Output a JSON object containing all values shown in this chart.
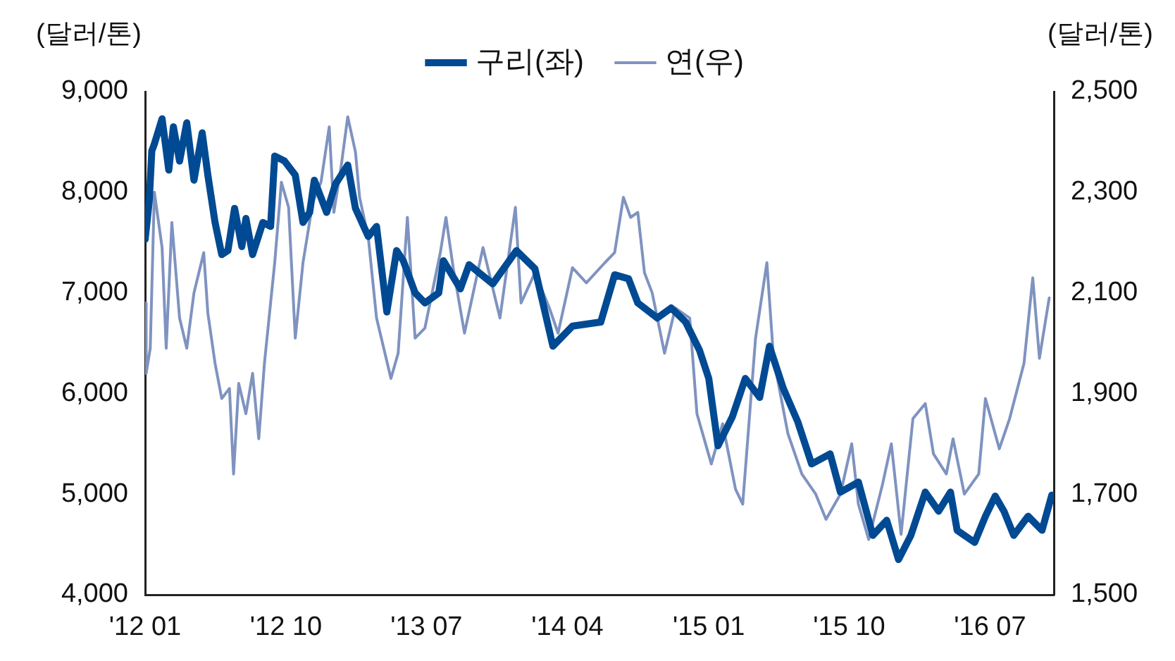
{
  "chart_data": {
    "type": "line",
    "ylabel": "(달러/톤)",
    "y2label": "(달러/톤)",
    "xlim": [
      "2012-01-01",
      "2016-11-02"
    ],
    "xticks": [
      {
        "value": "2012-01-01",
        "label": "'12 01"
      },
      {
        "value": "2012-10-01",
        "label": "'12 10"
      },
      {
        "value": "2013-07-01",
        "label": "'13 07"
      },
      {
        "value": "2014-04-01",
        "label": "'14 04"
      },
      {
        "value": "2015-01-01",
        "label": "'15 01"
      },
      {
        "value": "2015-10-01",
        "label": "'15 10"
      },
      {
        "value": "2016-07-01",
        "label": "'16 07"
      }
    ],
    "ylim": [
      4000,
      9000
    ],
    "yticks": [
      {
        "value": 4000,
        "label": "4,000"
      },
      {
        "value": 5000,
        "label": "5,000"
      },
      {
        "value": 6000,
        "label": "6,000"
      },
      {
        "value": 7000,
        "label": "7,000"
      },
      {
        "value": 8000,
        "label": "8,000"
      },
      {
        "value": 9000,
        "label": "9,000"
      }
    ],
    "y2lim": [
      1500,
      2500
    ],
    "y2ticks": [
      {
        "value": 1500,
        "label": "1,500"
      },
      {
        "value": 1700,
        "label": "1,700"
      },
      {
        "value": 1900,
        "label": "1,900"
      },
      {
        "value": 2100,
        "label": "2,100"
      },
      {
        "value": 2300,
        "label": "2,300"
      },
      {
        "value": 2500,
        "label": "2,500"
      }
    ],
    "grid": false,
    "legend": "top",
    "marker": "none",
    "line_style": "solid",
    "series": [
      {
        "name": "구리(좌)",
        "color": "#004a93",
        "x": [
          "2012-01-01",
          "2012-01-09",
          "2012-01-14",
          "2012-01-19",
          "2012-02-03",
          "2012-02-16",
          "2012-02-25",
          "2012-03-08",
          "2012-03-22",
          "2012-04-05",
          "2012-04-21",
          "2012-05-02",
          "2012-05-16",
          "2012-05-29",
          "2012-06-10",
          "2012-06-23",
          "2012-07-07",
          "2012-07-15",
          "2012-07-28",
          "2012-08-17",
          "2012-09-01",
          "2012-09-09",
          "2012-09-28",
          "2012-10-19",
          "2012-11-03",
          "2012-11-16",
          "2012-11-25",
          "2012-12-19",
          "2013-01-05",
          "2013-01-29",
          "2013-02-13",
          "2013-03-10",
          "2013-03-26",
          "2013-04-15",
          "2013-05-04",
          "2013-05-17",
          "2013-06-09",
          "2013-06-28",
          "2013-07-25",
          "2013-08-03",
          "2013-09-05",
          "2013-09-22",
          "2013-11-07",
          "2013-12-23",
          "2014-01-28",
          "2014-03-04",
          "2014-04-11",
          "2014-06-05",
          "2014-07-02",
          "2014-07-29",
          "2014-08-16",
          "2014-09-23",
          "2014-10-20",
          "2014-11-17",
          "2014-12-14",
          "2015-01-01",
          "2015-01-19",
          "2015-02-16",
          "2015-03-13",
          "2015-04-10",
          "2015-04-29",
          "2015-05-26",
          "2015-06-23",
          "2015-07-20",
          "2015-08-25",
          "2015-09-14",
          "2015-10-19",
          "2015-11-16",
          "2015-12-13",
          "2016-01-05",
          "2016-01-29",
          "2016-02-26",
          "2016-03-23",
          "2016-04-15",
          "2016-04-28",
          "2016-06-01",
          "2016-06-22",
          "2016-07-11",
          "2016-07-28",
          "2016-08-16",
          "2016-09-13",
          "2016-10-10",
          "2016-10-29"
        ],
        "values": [
          7530,
          7910,
          8410,
          8480,
          8730,
          8220,
          8650,
          8310,
          8690,
          8120,
          8590,
          8170,
          7700,
          7380,
          7420,
          7840,
          7460,
          7740,
          7380,
          7700,
          7660,
          8360,
          8310,
          8170,
          7700,
          7800,
          8120,
          7800,
          8080,
          8270,
          7840,
          7560,
          7660,
          6810,
          7420,
          7320,
          7000,
          6900,
          7000,
          7320,
          7040,
          7280,
          7090,
          7420,
          7240,
          6470,
          6670,
          6710,
          7180,
          7140,
          6900,
          6750,
          6850,
          6710,
          6430,
          6150,
          5480,
          5770,
          6150,
          5960,
          6470,
          6050,
          5720,
          5300,
          5400,
          5020,
          5120,
          4590,
          4740,
          4350,
          4590,
          5020,
          4830,
          5020,
          4640,
          4520,
          4780,
          4980,
          4830,
          4590,
          4780,
          4640,
          4990
        ]
      },
      {
        "name": "연(우)",
        "color": "#7f93c0",
        "axis": "y2",
        "x": [
          "2012-01-01",
          "2012-01-03",
          "2012-01-11",
          "2012-01-19",
          "2012-02-03",
          "2012-02-11",
          "2012-02-22",
          "2012-03-08",
          "2012-03-22",
          "2012-04-05",
          "2012-04-24",
          "2012-05-02",
          "2012-05-16",
          "2012-05-29",
          "2012-06-13",
          "2012-06-21",
          "2012-07-01",
          "2012-07-15",
          "2012-07-28",
          "2012-08-09",
          "2012-08-20",
          "2012-09-09",
          "2012-09-22",
          "2012-10-06",
          "2012-10-19",
          "2012-11-03",
          "2012-11-22",
          "2012-12-08",
          "2012-12-24",
          "2013-01-02",
          "2013-01-16",
          "2013-01-29",
          "2013-02-13",
          "2013-02-21",
          "2013-03-10",
          "2013-03-26",
          "2013-04-23",
          "2013-05-07",
          "2013-05-25",
          "2013-06-09",
          "2013-06-28",
          "2013-07-28",
          "2013-08-08",
          "2013-08-22",
          "2013-09-13",
          "2013-10-19",
          "2013-11-21",
          "2013-12-21",
          "2014-01-01",
          "2014-01-28",
          "2014-02-25",
          "2014-03-14",
          "2014-04-11",
          "2014-05-08",
          "2014-06-13",
          "2014-07-02",
          "2014-07-19",
          "2014-08-02",
          "2014-08-16",
          "2014-08-29",
          "2014-09-13",
          "2014-10-07",
          "2014-10-28",
          "2014-11-25",
          "2014-12-09",
          "2015-01-06",
          "2015-01-28",
          "2015-02-22",
          "2015-03-08",
          "2015-04-02",
          "2015-04-24",
          "2015-05-07",
          "2015-06-04",
          "2015-07-01",
          "2015-07-28",
          "2015-08-17",
          "2015-09-14",
          "2015-10-06",
          "2015-10-19",
          "2015-11-08",
          "2015-12-05",
          "2015-12-22",
          "2016-01-10",
          "2016-02-02",
          "2016-02-26",
          "2016-03-13",
          "2016-04-07",
          "2016-04-20",
          "2016-05-12",
          "2016-06-09",
          "2016-06-22",
          "2016-07-19",
          "2016-08-08",
          "2016-09-05",
          "2016-09-22",
          "2016-10-05",
          "2016-10-24"
        ],
        "values": [
          2080,
          1940,
          1990,
          2300,
          2190,
          1990,
          2240,
          2050,
          1990,
          2100,
          2180,
          2060,
          1960,
          1890,
          1910,
          1740,
          1920,
          1860,
          1940,
          1810,
          1960,
          2160,
          2320,
          2270,
          2010,
          2160,
          2280,
          2320,
          2430,
          2260,
          2350,
          2450,
          2380,
          2290,
          2210,
          2050,
          1930,
          1980,
          2250,
          2010,
          2030,
          2180,
          2250,
          2150,
          2020,
          2190,
          2050,
          2270,
          2080,
          2140,
          2070,
          2020,
          2150,
          2120,
          2160,
          2180,
          2290,
          2250,
          2260,
          2140,
          2100,
          1980,
          2070,
          2050,
          1860,
          1760,
          1840,
          1710,
          1680,
          2010,
          2160,
          1970,
          1820,
          1740,
          1700,
          1650,
          1700,
          1800,
          1680,
          1610,
          1720,
          1800,
          1620,
          1850,
          1880,
          1780,
          1740,
          1810,
          1700,
          1740,
          1890,
          1790,
          1850,
          1960,
          2130,
          1970,
          2090
        ]
      }
    ]
  }
}
